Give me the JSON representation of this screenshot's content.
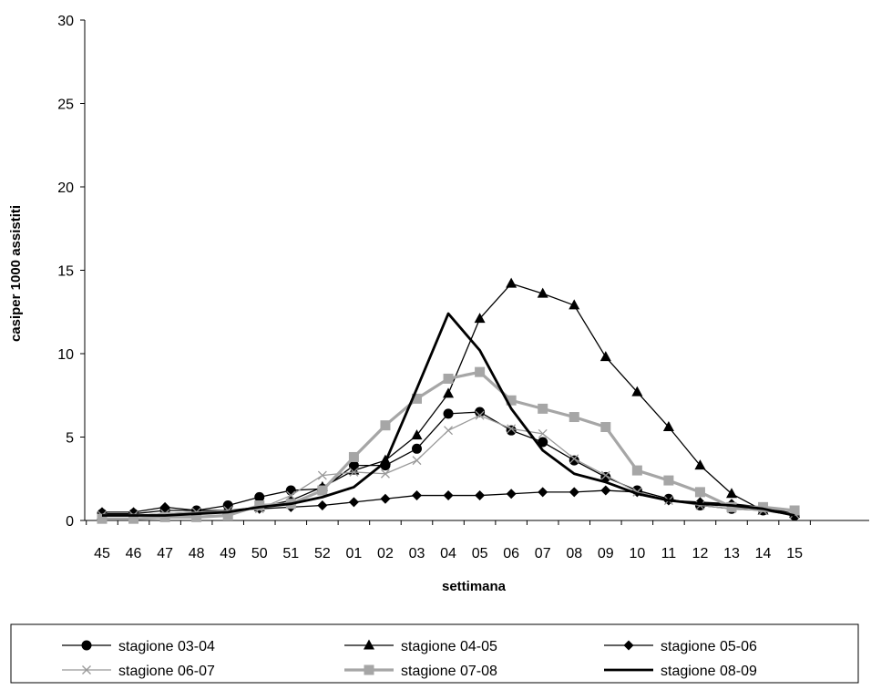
{
  "chart_data": {
    "type": "line",
    "title": "",
    "xlabel": "settimana",
    "ylabel": "casiper 1000 assistiti",
    "ylim": [
      0,
      30
    ],
    "yticks": [
      "0",
      "5",
      "10",
      "15",
      "20",
      "25",
      "30"
    ],
    "categories": [
      "45",
      "46",
      "47",
      "48",
      "49",
      "50",
      "51",
      "52",
      "01",
      "02",
      "03",
      "04",
      "05",
      "06",
      "07",
      "08",
      "09",
      "10",
      "11",
      "12",
      "13",
      "14",
      "15"
    ],
    "grid": false,
    "legend_position": "bottom",
    "series": [
      {
        "name": "stagione 03-04",
        "color": "#000000",
        "marker": "circle",
        "values": [
          0.4,
          0.4,
          0.6,
          0.6,
          0.9,
          1.4,
          1.8,
          1.9,
          3.3,
          3.3,
          4.3,
          6.4,
          6.5,
          5.4,
          4.7,
          3.6,
          2.6,
          1.8,
          1.3,
          0.9,
          0.7,
          0.6,
          0.3
        ]
      },
      {
        "name": "stagione 04-05",
        "color": "#000000",
        "marker": "triangle",
        "values": [
          0.3,
          0.3,
          0.4,
          0.5,
          0.6,
          0.8,
          1.2,
          2.0,
          3.0,
          3.6,
          5.1,
          7.6,
          12.1,
          14.2,
          13.6,
          12.9,
          9.8,
          7.7,
          5.6,
          3.3,
          1.6,
          0.6,
          0.4
        ]
      },
      {
        "name": "stagione 05-06",
        "color": "#000000",
        "marker": "diamond",
        "values": [
          0.5,
          0.5,
          0.8,
          0.6,
          0.6,
          0.7,
          0.8,
          0.9,
          1.1,
          1.3,
          1.5,
          1.5,
          1.5,
          1.6,
          1.7,
          1.7,
          1.8,
          1.7,
          1.2,
          1.1,
          1.0,
          0.8,
          0.4
        ]
      },
      {
        "name": "stagione 06-07",
        "color": "#999999",
        "marker": "x",
        "values": [
          0.3,
          0.3,
          0.4,
          0.5,
          0.6,
          0.7,
          1.5,
          2.7,
          2.9,
          2.8,
          3.6,
          5.4,
          6.3,
          5.5,
          5.2,
          3.7,
          2.7,
          1.7,
          1.2,
          0.9,
          0.7,
          0.6,
          0.4
        ]
      },
      {
        "name": "stagione 07-08",
        "color": "#a6a6a6",
        "marker": "square",
        "values": [
          0.1,
          0.1,
          0.2,
          0.2,
          0.3,
          0.9,
          1.0,
          1.8,
          3.8,
          5.7,
          7.3,
          8.5,
          8.9,
          7.2,
          6.7,
          6.2,
          5.6,
          3.0,
          2.4,
          1.7,
          0.8,
          0.8,
          0.6
        ]
      },
      {
        "name": "stagione 08-09",
        "color": "#000000",
        "marker": "none",
        "values": [
          0.3,
          0.3,
          0.3,
          0.4,
          0.5,
          0.8,
          1.0,
          1.4,
          2.0,
          3.5,
          7.9,
          12.4,
          10.2,
          6.7,
          4.2,
          2.8,
          2.3,
          1.6,
          1.2,
          1.0,
          0.9,
          0.7,
          0.3
        ]
      }
    ]
  }
}
